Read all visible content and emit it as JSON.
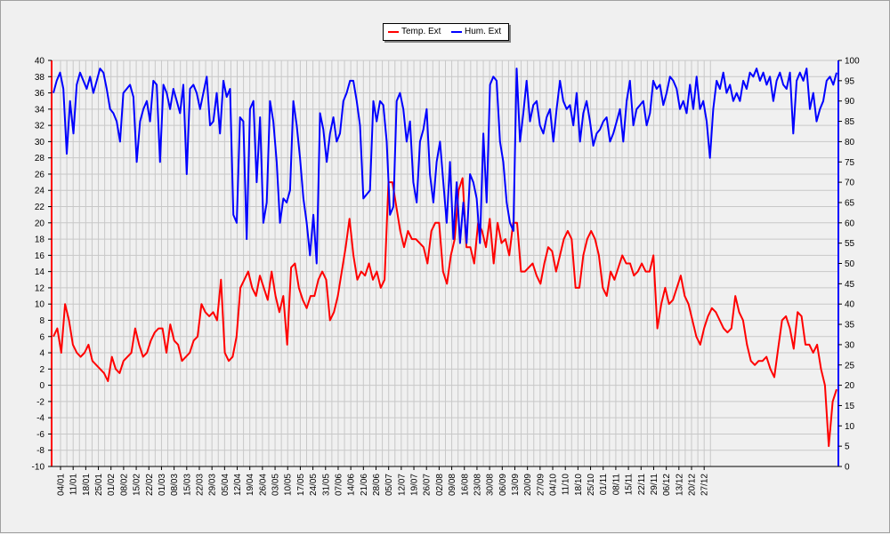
{
  "chart_data": {
    "type": "line",
    "title": "",
    "xlabel": "",
    "ylabel": "",
    "y_left_range": [
      -10,
      40
    ],
    "y_left_ticks": [
      "-10",
      "-8",
      "-6",
      "-4",
      "-2",
      "0",
      "2",
      "4",
      "6",
      "8",
      "10",
      "12",
      "14",
      "16",
      "18",
      "20",
      "22",
      "24",
      "26",
      "28",
      "30",
      "32",
      "34",
      "36",
      "38",
      "40"
    ],
    "y_right_range": [
      0,
      100
    ],
    "y_right_ticks": [
      "0",
      "5",
      "10",
      "15",
      "20",
      "25",
      "30",
      "35",
      "40",
      "45",
      "50",
      "55",
      "60",
      "65",
      "70",
      "75",
      "80",
      "85",
      "90",
      "95",
      "100"
    ],
    "x_tick_labels": [
      "04/01",
      "11/01",
      "18/01",
      "25/01",
      "01/02",
      "08/02",
      "15/02",
      "22/02",
      "01/03",
      "08/03",
      "15/03",
      "22/03",
      "29/03",
      "05/04",
      "12/04",
      "19/04",
      "26/04",
      "03/05",
      "10/05",
      "17/05",
      "24/05",
      "31/05",
      "07/06",
      "14/06",
      "21/06",
      "28/06",
      "05/07",
      "12/07",
      "19/07",
      "26/07",
      "02/08",
      "09/08",
      "16/08",
      "23/08",
      "30/08",
      "06/09",
      "13/09",
      "20/09",
      "27/09",
      "04/10",
      "11/10",
      "18/10",
      "25/10",
      "01/11",
      "08/11",
      "15/11",
      "22/11",
      "29/11",
      "06/12",
      "13/12",
      "20/12",
      "27/12"
    ],
    "grid": true,
    "legend_position": "top-center",
    "series": [
      {
        "name": "Temp. Ext",
        "color": "#ff0000",
        "axis": "left",
        "values": [
          6,
          7,
          4,
          10,
          8,
          5,
          4,
          3.5,
          4,
          5,
          3,
          2.5,
          2,
          1.5,
          0.5,
          3.5,
          2,
          1.5,
          3,
          3.5,
          4,
          7,
          5,
          3.5,
          4,
          5.5,
          6.5,
          7,
          7,
          4,
          7.5,
          5.5,
          5,
          3,
          3.5,
          4,
          5.5,
          6,
          10,
          9,
          8.5,
          9,
          8,
          13,
          4,
          3,
          3.5,
          6,
          12,
          13,
          14,
          12,
          11,
          13.5,
          12,
          10.5,
          14,
          11,
          9,
          11,
          5,
          14.5,
          15,
          12,
          10.5,
          9.5,
          11,
          11,
          13,
          14,
          13,
          8,
          9,
          11,
          14,
          17,
          20.5,
          16,
          13,
          14,
          13.5,
          15,
          13,
          14,
          12,
          13,
          25,
          25,
          22,
          19,
          17,
          19,
          18,
          18,
          17.5,
          17,
          15,
          19,
          20,
          20,
          14,
          12.5,
          16,
          18,
          24,
          25.5,
          17,
          17,
          15,
          20,
          19,
          17,
          20.5,
          15,
          20,
          17.5,
          18,
          16,
          20,
          20,
          14,
          14,
          14.5,
          15,
          13.5,
          12.5,
          15,
          17,
          16.5,
          14,
          16,
          18,
          19,
          18,
          12,
          12,
          16,
          18,
          19,
          18,
          16,
          12,
          11,
          14,
          13,
          14.5,
          16,
          15,
          15,
          13.5,
          14,
          15,
          14,
          14,
          16,
          7,
          10,
          12,
          10,
          10.5,
          12,
          13.5,
          11,
          10,
          8,
          6,
          5,
          7,
          8.5,
          9.5,
          9,
          8,
          7,
          6.5,
          7,
          11,
          9,
          8,
          5,
          3,
          2.5,
          3,
          3,
          3.5,
          2,
          1,
          4.5,
          8,
          8.5,
          7,
          4.5,
          9,
          8.5,
          5,
          5,
          4,
          5,
          2,
          0,
          -7.5,
          -2,
          -0.5
        ]
      },
      {
        "name": "Hum. Ext",
        "color": "#0000ff",
        "axis": "right",
        "values": [
          92,
          95,
          97,
          93,
          77,
          90,
          82,
          94,
          97,
          95,
          93,
          96,
          92,
          95,
          98,
          97,
          93,
          88,
          87,
          85,
          80,
          92,
          93,
          94,
          91,
          75,
          85,
          88,
          90,
          85,
          95,
          94,
          75,
          94,
          92,
          88,
          93,
          90,
          87,
          94,
          72,
          93,
          94,
          92,
          88,
          92,
          96,
          84,
          85,
          92,
          82,
          95,
          91,
          93,
          62,
          60,
          86,
          85,
          56,
          88,
          90,
          70,
          86,
          60,
          65,
          90,
          85,
          75,
          60,
          66,
          65,
          68,
          90,
          84,
          76,
          66,
          60,
          52,
          62,
          50,
          87,
          83,
          75,
          82,
          86,
          80,
          82,
          90,
          92,
          95,
          95,
          90,
          84,
          66,
          67,
          68,
          90,
          85,
          90,
          89,
          80,
          62,
          64,
          90,
          92,
          88,
          80,
          85,
          70,
          65,
          80,
          83,
          88,
          72,
          65,
          75,
          80,
          70,
          60,
          75,
          56,
          70,
          55,
          65,
          55,
          72,
          70,
          66,
          55,
          82,
          65,
          94,
          96,
          95,
          80,
          75,
          65,
          60,
          58,
          98,
          80,
          87,
          95,
          85,
          89,
          90,
          84,
          82,
          86,
          88,
          80,
          88,
          95,
          90,
          88,
          89,
          84,
          92,
          80,
          87,
          90,
          85,
          79,
          82,
          83,
          85,
          86,
          80,
          82,
          85,
          88,
          80,
          90,
          95,
          84,
          88,
          89,
          90,
          84,
          87,
          95,
          93,
          94,
          89,
          92,
          96,
          95,
          93,
          88,
          90,
          87,
          94,
          88,
          96,
          88,
          90,
          85,
          76,
          88,
          95,
          93,
          97,
          92,
          94,
          90,
          92,
          90,
          95,
          93,
          97,
          96,
          98,
          95,
          97,
          94,
          96,
          90,
          95,
          97,
          94,
          93,
          97,
          82,
          95,
          97,
          95,
          98,
          88,
          92,
          85,
          88,
          90,
          95,
          96,
          94,
          97
        ]
      }
    ]
  }
}
